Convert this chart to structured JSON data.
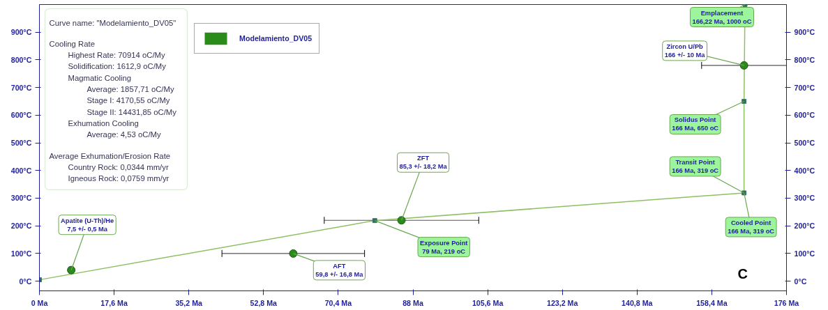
{
  "chart_data": {
    "type": "line",
    "xlim": [
      0,
      176
    ],
    "ylim": [
      -35,
      1000
    ],
    "xticks": [
      {
        "value": 0,
        "label": "0 Ma"
      },
      {
        "value": 17.6,
        "label": "17,6 Ma"
      },
      {
        "value": 35.2,
        "label": "35,2 Ma"
      },
      {
        "value": 52.8,
        "label": "52,8 Ma"
      },
      {
        "value": 70.4,
        "label": "70,4 Ma"
      },
      {
        "value": 88,
        "label": "88 Ma"
      },
      {
        "value": 105.6,
        "label": "105,6 Ma"
      },
      {
        "value": 123.2,
        "label": "123,2 Ma"
      },
      {
        "value": 140.8,
        "label": "140,8 Ma"
      },
      {
        "value": 158.4,
        "label": "158,4 Ma"
      },
      {
        "value": 176,
        "label": "176 Ma"
      }
    ],
    "yticks": [
      {
        "value": 0,
        "label": "0°C"
      },
      {
        "value": 100,
        "label": "100°C"
      },
      {
        "value": 200,
        "label": "200°C"
      },
      {
        "value": 300,
        "label": "300°C"
      },
      {
        "value": 400,
        "label": "400°C"
      },
      {
        "value": 500,
        "label": "500°C"
      },
      {
        "value": 600,
        "label": "600°C"
      },
      {
        "value": 700,
        "label": "700°C"
      },
      {
        "value": 800,
        "label": "800°C"
      },
      {
        "value": 900,
        "label": "900°C"
      }
    ],
    "y2lim": [
      -35,
      1000
    ],
    "y2ticks": [
      {
        "value": 0,
        "label": "0°C"
      },
      {
        "value": 100,
        "label": "100°C"
      },
      {
        "value": 200,
        "label": "200°C"
      },
      {
        "value": 300,
        "label": "300°C"
      },
      {
        "value": 400,
        "label": "400°C"
      },
      {
        "value": 500,
        "label": "500°C"
      },
      {
        "value": 600,
        "label": "600°C"
      },
      {
        "value": 700,
        "label": "700°C"
      },
      {
        "value": 800,
        "label": "800°C"
      },
      {
        "value": 900,
        "label": "900°C"
      }
    ],
    "grid": false,
    "legend": "top left",
    "series": [
      {
        "type": "line",
        "color": "#8cc063",
        "marker": "square",
        "x": [
          0,
          79,
          166,
          166,
          166.22
        ],
        "values": [
          5,
          219,
          319,
          650,
          1000
        ]
      },
      {
        "type": "scatter",
        "name": "Modelamiento_DV05",
        "color": "#2a8a1a",
        "marker": "circle",
        "x": [
          7.5,
          59.8,
          85.3,
          166
        ],
        "values": [
          40,
          100,
          220,
          780
        ],
        "xerrors": [
          0.5,
          16.8,
          18.2,
          10
        ]
      }
    ],
    "annotations": [
      "Curve name: \"Modelamiento_DV05\"",
      "Cooling Rate",
      "Highest Rate: 70914 oC/My",
      "Solidification: 1612,9 oC/My",
      "Magmatic Cooling",
      "Average: 1857,71 oC/My",
      "Stage I: 4170,55 oC/My",
      "Stage II: 14431,85 oC/My",
      "Exhumation Cooling",
      "Average: 4,53 oC/My",
      "Average Exhumation/Erosion Rate",
      "Country Rock: 0,0344 mm/yr",
      "Igneous Rock: 0,0759 mm/yr",
      {
        "text": "Apatite (U-Th)/He\n7,5 +/- 0,5 Ma",
        "x": 7.5,
        "y": 40
      },
      {
        "text": "AFT\n59,8 +/- 16,8 Ma",
        "x": 59.8,
        "y": 100
      },
      {
        "text": "ZFT\n85,3 +/- 18,2 Ma",
        "x": 85.3,
        "y": 220
      },
      {
        "text": "Exposure Point\n79 Ma, 219 oC",
        "x": 79,
        "y": 219
      },
      {
        "text": "Zircon U/Pb\n166 +/- 10 Ma",
        "x": 166,
        "y": 780
      },
      {
        "text": "Emplacement\n166,22 Ma, 1000 oC",
        "x": 166.22,
        "y": 1000
      },
      {
        "text": "Solidus Point\n166 Ma, 650 oC",
        "x": 166,
        "y": 650
      },
      {
        "text": "Transit Point\n166 Ma, 319 oC",
        "x": 166,
        "y": 319
      },
      {
        "text": "Cooled Point\n166 Ma, 319 oC",
        "x": 166,
        "y": 319
      },
      "C"
    ]
  }
}
